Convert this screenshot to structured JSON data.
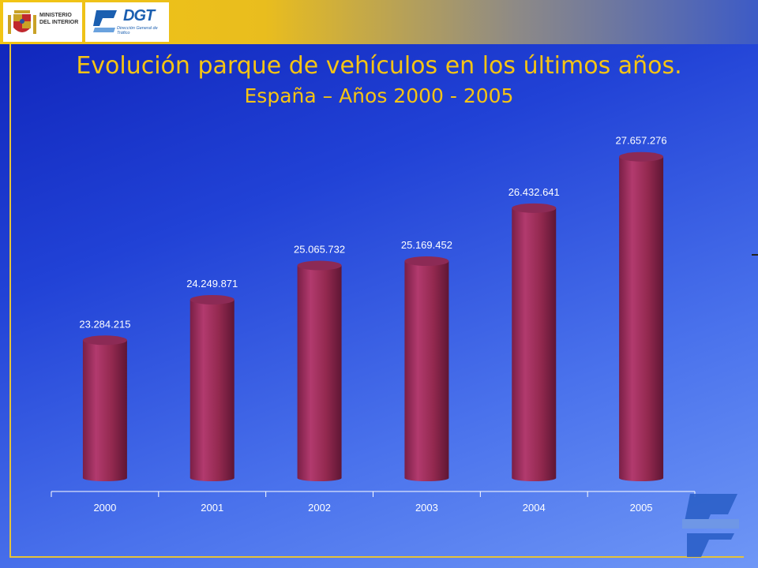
{
  "header": {
    "ministerio_logo": "MINISTERIO DEL INTERIOR",
    "dgt_logo": "DGT",
    "dgt_logo_sub": "Dirección General de Tráfico"
  },
  "title": "Evolución parque de vehículos en los últimos años.",
  "subtitle": "España – Años 2000 - 2005",
  "colors": {
    "title": "#f6c413",
    "bar": "#a0305f",
    "label": "#ffffff"
  },
  "chart_data": {
    "type": "bar",
    "style": "3d-cylinder",
    "categories": [
      "2000",
      "2001",
      "2002",
      "2003",
      "2004",
      "2005"
    ],
    "values": [
      23284215,
      24249871,
      25065732,
      25169452,
      26432641,
      27657276
    ],
    "value_labels": [
      "23.284.215",
      "24.249.871",
      "25.065.732",
      "25.169.452",
      "26.432.641",
      "27.657.276"
    ],
    "title": "",
    "xlabel": "",
    "ylabel": "",
    "ylim": [
      20000000,
      28000000
    ],
    "grid": false,
    "legend": "none"
  }
}
